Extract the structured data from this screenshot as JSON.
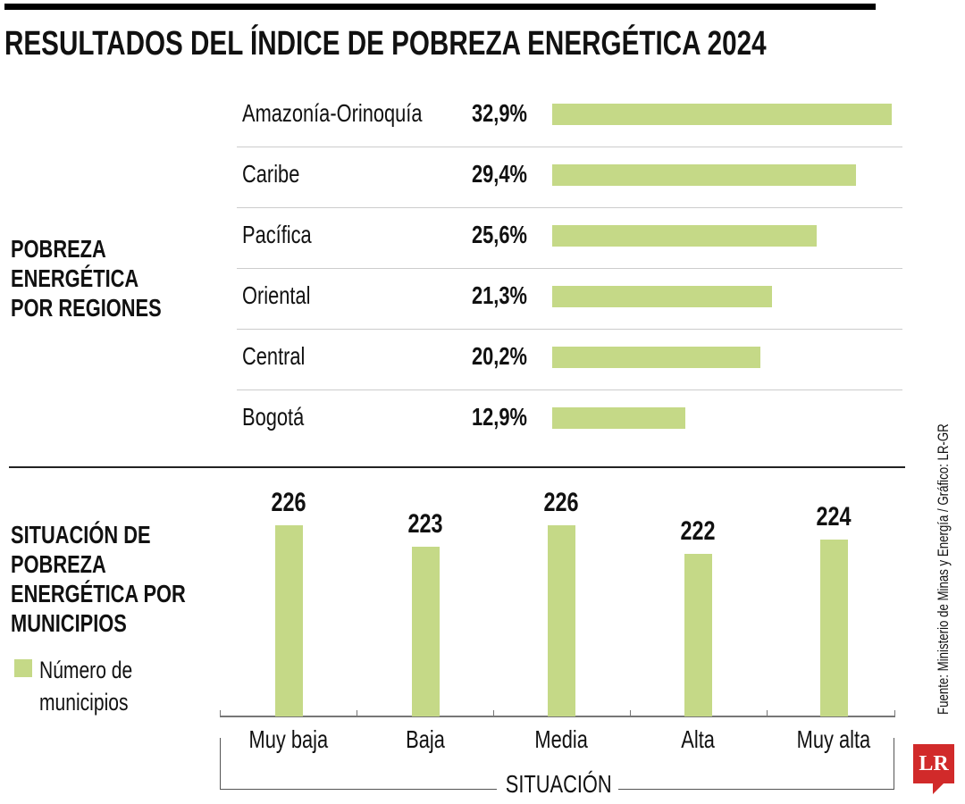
{
  "title": "RESULTADOS DEL ÍNDICE DE POBREZA ENERGÉTICA 2024",
  "source": "Fuente: Ministerio de Minas y Energía / Gráfico: LR-GR",
  "logo": "LR",
  "chart_data": [
    {
      "type": "bar",
      "orientation": "horizontal",
      "title": "POBREZA ENERGÉTICA POR REGIONES",
      "categories": [
        "Amazonía-Orinoquía",
        "Caribe",
        "Pacífica",
        "Oriental",
        "Central",
        "Bogotá"
      ],
      "values": [
        32.9,
        29.4,
        25.6,
        21.3,
        20.2,
        12.9
      ],
      "value_labels": [
        "32,9%",
        "29,4%",
        "25,6%",
        "21,3%",
        "20,2%",
        "12,9%"
      ],
      "unit": "%",
      "xlim": [
        0,
        32.9
      ],
      "color": "#c5d987",
      "grid": false
    },
    {
      "type": "bar",
      "orientation": "vertical",
      "title": "SITUACIÓN DE POBREZA ENERGÉTICA POR MUNICIPIOS",
      "categories": [
        "Muy baja",
        "Baja",
        "Media",
        "Alta",
        "Muy alta"
      ],
      "values": [
        226,
        223,
        226,
        222,
        224
      ],
      "value_labels": [
        "226",
        "223",
        "226",
        "222",
        "224"
      ],
      "xlabel": "SITUACIÓN",
      "legend": "Número de municipios",
      "legend_placement": "left",
      "color": "#c5d987",
      "grid": false
    }
  ]
}
